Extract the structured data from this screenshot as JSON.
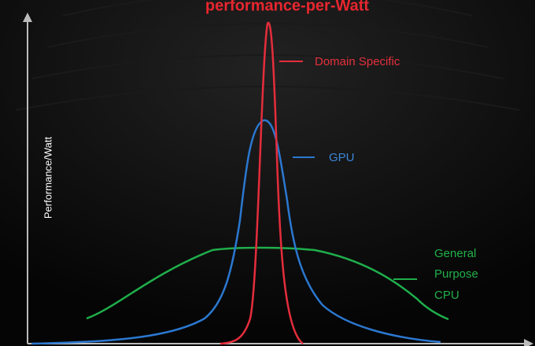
{
  "header": {
    "title": "performance-per-Watt"
  },
  "axis": {
    "y_label": "Performance/Watt"
  },
  "curves": [
    {
      "label": [
        "Domain Specific"
      ]
    },
    {
      "label": [
        "GPU"
      ]
    },
    {
      "label": [
        "General",
        "Purpose",
        "CPU"
      ]
    }
  ]
}
